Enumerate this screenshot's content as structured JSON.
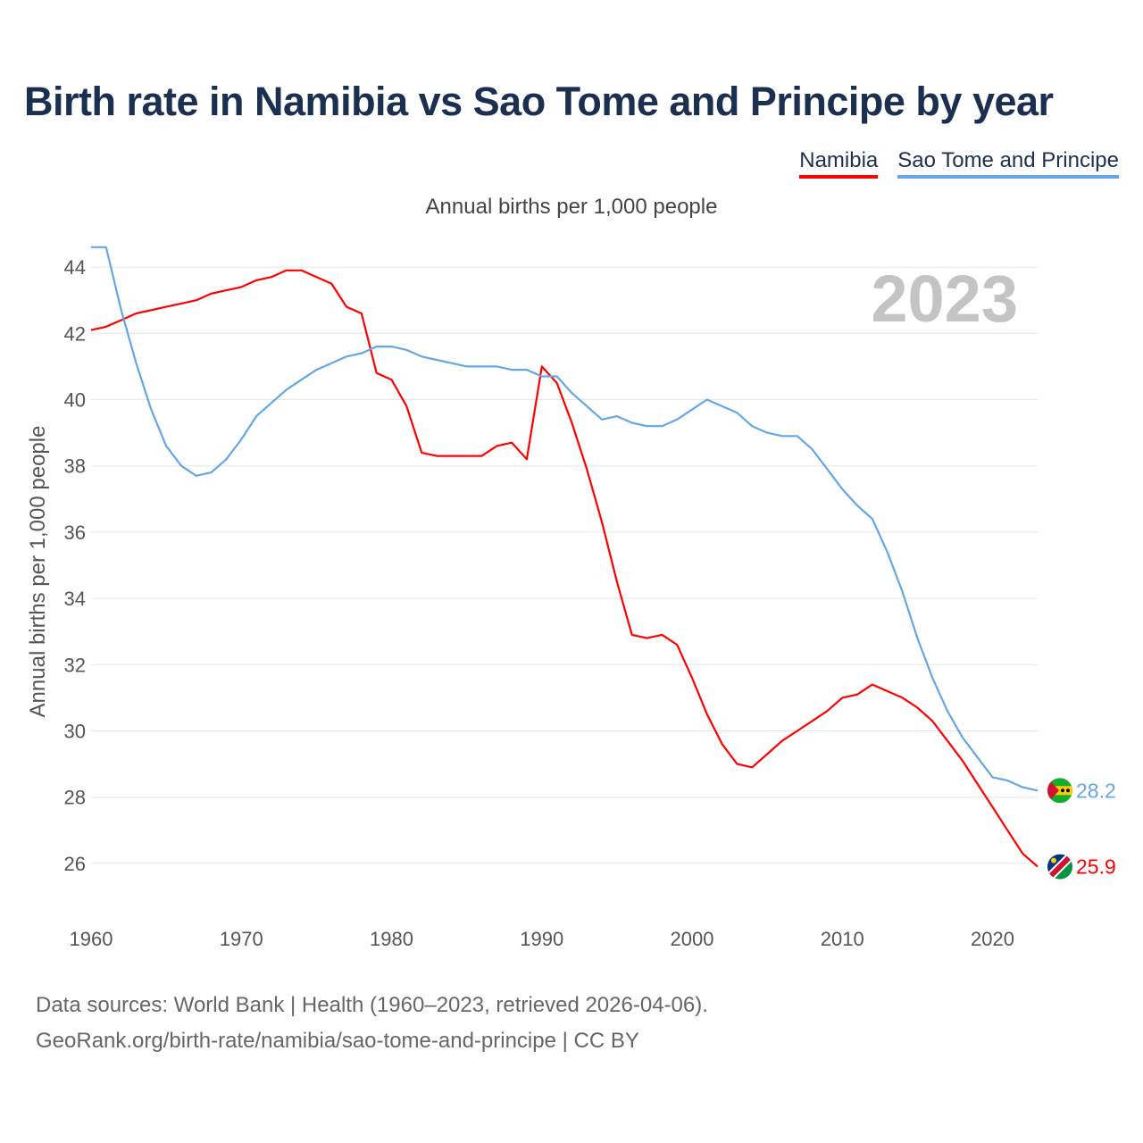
{
  "title": "Birth rate in Namibia vs Sao Tome and Principe by year",
  "legend": {
    "namibia": "Namibia",
    "sao_tome": "Sao Tome and Principe"
  },
  "subtitle": "Annual births per 1,000 people",
  "year_watermark": "2023",
  "footer": {
    "line1": "Data sources: World Bank | Health (1960–2023, retrieved 2026-04-06).",
    "line2": "GeoRank.org/birth-rate/namibia/sao-tome-and-principe | CC BY"
  },
  "colors": {
    "namibia": "#ff0000",
    "sao_tome": "#64a6e6",
    "title": "#1b3050",
    "grid": "#e6e6e6",
    "axis_text": "#555555",
    "watermark": "#c4c4c4"
  },
  "chart_data": {
    "type": "line",
    "title": "Birth rate in Namibia vs Sao Tome and Principe by year",
    "xlabel": "",
    "ylabel": "Annual births per 1,000 people",
    "xlim": [
      1960,
      2023
    ],
    "ylim": [
      25,
      45
    ],
    "x_ticks": [
      1960,
      1970,
      1980,
      1990,
      2000,
      2010,
      2020
    ],
    "y_ticks": [
      26,
      28,
      30,
      32,
      34,
      36,
      38,
      40,
      42,
      44
    ],
    "grid": true,
    "legend_position": "top-right",
    "x": [
      1960,
      1961,
      1962,
      1963,
      1964,
      1965,
      1966,
      1967,
      1968,
      1969,
      1970,
      1971,
      1972,
      1973,
      1974,
      1975,
      1976,
      1977,
      1978,
      1979,
      1980,
      1981,
      1982,
      1983,
      1984,
      1985,
      1986,
      1987,
      1988,
      1989,
      1990,
      1991,
      1992,
      1993,
      1994,
      1995,
      1996,
      1997,
      1998,
      1999,
      2000,
      2001,
      2002,
      2003,
      2004,
      2005,
      2006,
      2007,
      2008,
      2009,
      2010,
      2011,
      2012,
      2013,
      2014,
      2015,
      2016,
      2017,
      2018,
      2019,
      2020,
      2021,
      2022,
      2023
    ],
    "series": [
      {
        "name": "Namibia",
        "end_label": "25.9",
        "values": [
          42.1,
          42.2,
          42.4,
          42.6,
          42.7,
          42.8,
          42.9,
          43.0,
          43.2,
          43.3,
          43.4,
          43.6,
          43.7,
          43.9,
          43.9,
          43.7,
          43.5,
          42.8,
          42.6,
          40.8,
          40.6,
          39.8,
          38.4,
          38.3,
          38.3,
          38.3,
          38.3,
          38.6,
          38.7,
          38.2,
          41.0,
          40.5,
          39.3,
          37.9,
          36.3,
          34.5,
          32.9,
          32.8,
          32.9,
          32.6,
          31.6,
          30.5,
          29.6,
          29.0,
          28.9,
          29.3,
          29.7,
          30.0,
          30.3,
          30.6,
          31.0,
          31.1,
          31.4,
          31.2,
          31.0,
          30.7,
          30.3,
          29.7,
          29.1,
          28.4,
          27.7,
          27.0,
          26.3,
          25.9
        ]
      },
      {
        "name": "Sao Tome and Principe",
        "end_label": "28.2",
        "values": [
          44.6,
          44.6,
          42.7,
          41.1,
          39.7,
          38.6,
          38.0,
          37.7,
          37.8,
          38.2,
          38.8,
          39.5,
          39.9,
          40.3,
          40.6,
          40.9,
          41.1,
          41.3,
          41.4,
          41.6,
          41.6,
          41.5,
          41.3,
          41.2,
          41.1,
          41.0,
          41.0,
          41.0,
          40.9,
          40.9,
          40.7,
          40.7,
          40.2,
          39.8,
          39.4,
          39.5,
          39.3,
          39.2,
          39.2,
          39.4,
          39.7,
          40.0,
          39.8,
          39.6,
          39.2,
          39.0,
          38.9,
          38.9,
          38.5,
          37.9,
          37.3,
          36.8,
          36.4,
          35.4,
          34.2,
          32.8,
          31.6,
          30.6,
          29.8,
          29.2,
          28.6,
          28.5,
          28.3,
          28.2
        ]
      }
    ]
  }
}
